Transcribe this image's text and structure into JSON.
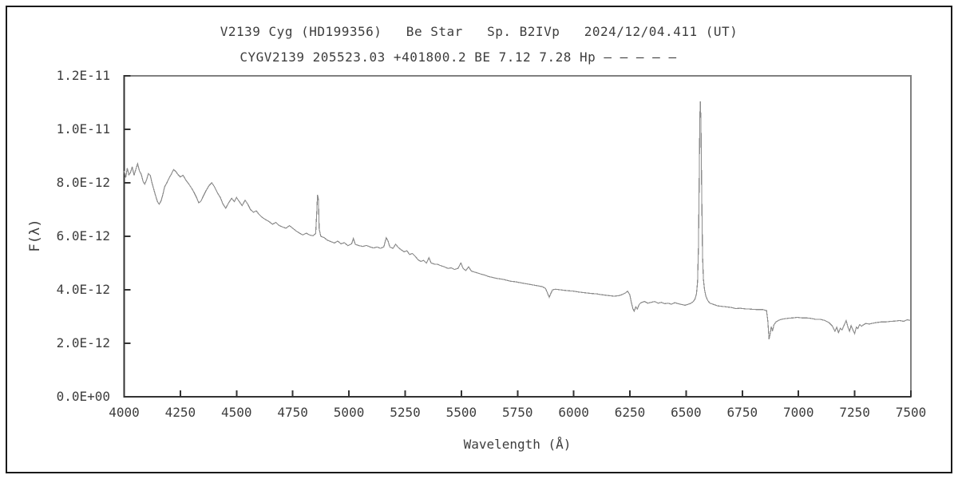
{
  "page": {
    "background": "#ffffff",
    "border_color": "#1a1a1a"
  },
  "chart_data": {
    "type": "line",
    "title": "V2139 Cyg (HD199356)   Be Star   Sp. B2IVp   2024/12/04.411 (UT)",
    "subtitle": "CYGV2139 205523.03 +401800.2 BE 7.12 7.28 Hp – – – – –",
    "xlabel": "Wavelength (Å)",
    "ylabel": "F(λ)",
    "xlim": [
      4000,
      7500
    ],
    "ylim_flux_1e12": [
      0,
      12
    ],
    "flux_unit_factor": 1e-12,
    "x_ticks": [
      4000,
      4250,
      4500,
      4750,
      5000,
      5250,
      5500,
      5750,
      6000,
      6250,
      6500,
      6750,
      7000,
      7250,
      7500
    ],
    "x_tick_labels": [
      "4000",
      "4250",
      "4500",
      "4750",
      "5000",
      "5250",
      "5500",
      "5750",
      "6000",
      "6250",
      "6500",
      "6750",
      "7000",
      "7250",
      "7500"
    ],
    "y_ticks_flux_1e12": [
      0,
      2,
      4,
      6,
      8,
      10,
      12
    ],
    "y_tick_labels": [
      "0.0E+00",
      "2.0E-12",
      "4.0E-12",
      "6.0E-12",
      "8.0E-12",
      "1.0E-11",
      "1.2E-11"
    ],
    "grid": false,
    "legend_position": "none",
    "line_color": "#8c8c8c",
    "frame_color": "#808080",
    "axis_color": "#333333",
    "points_wavelength_flux_1e12": [
      [
        4000,
        8.45
      ],
      [
        4007,
        8.2
      ],
      [
        4014,
        8.55
      ],
      [
        4021,
        8.3
      ],
      [
        4028,
        8.38
      ],
      [
        4036,
        8.6
      ],
      [
        4044,
        8.28
      ],
      [
        4052,
        8.5
      ],
      [
        4060,
        8.72
      ],
      [
        4068,
        8.45
      ],
      [
        4076,
        8.32
      ],
      [
        4084,
        8.05
      ],
      [
        4092,
        7.95
      ],
      [
        4100,
        8.12
      ],
      [
        4108,
        8.35
      ],
      [
        4116,
        8.28
      ],
      [
        4124,
        8.0
      ],
      [
        4132,
        7.75
      ],
      [
        4140,
        7.52
      ],
      [
        4148,
        7.3
      ],
      [
        4156,
        7.2
      ],
      [
        4164,
        7.32
      ],
      [
        4172,
        7.55
      ],
      [
        4180,
        7.85
      ],
      [
        4190,
        8.0
      ],
      [
        4200,
        8.18
      ],
      [
        4210,
        8.32
      ],
      [
        4220,
        8.5
      ],
      [
        4230,
        8.42
      ],
      [
        4240,
        8.3
      ],
      [
        4250,
        8.22
      ],
      [
        4262,
        8.28
      ],
      [
        4275,
        8.1
      ],
      [
        4288,
        7.95
      ],
      [
        4300,
        7.8
      ],
      [
        4312,
        7.62
      ],
      [
        4322,
        7.45
      ],
      [
        4332,
        7.25
      ],
      [
        4342,
        7.32
      ],
      [
        4352,
        7.5
      ],
      [
        4365,
        7.72
      ],
      [
        4378,
        7.9
      ],
      [
        4390,
        8.0
      ],
      [
        4402,
        7.85
      ],
      [
        4415,
        7.62
      ],
      [
        4428,
        7.45
      ],
      [
        4440,
        7.2
      ],
      [
        4452,
        7.05
      ],
      [
        4465,
        7.25
      ],
      [
        4478,
        7.42
      ],
      [
        4490,
        7.3
      ],
      [
        4500,
        7.45
      ],
      [
        4512,
        7.3
      ],
      [
        4525,
        7.15
      ],
      [
        4538,
        7.35
      ],
      [
        4550,
        7.2
      ],
      [
        4562,
        7.0
      ],
      [
        4575,
        6.9
      ],
      [
        4588,
        6.95
      ],
      [
        4600,
        6.82
      ],
      [
        4615,
        6.7
      ],
      [
        4630,
        6.62
      ],
      [
        4645,
        6.55
      ],
      [
        4660,
        6.45
      ],
      [
        4675,
        6.52
      ],
      [
        4690,
        6.4
      ],
      [
        4705,
        6.35
      ],
      [
        4720,
        6.3
      ],
      [
        4735,
        6.4
      ],
      [
        4750,
        6.3
      ],
      [
        4765,
        6.2
      ],
      [
        4780,
        6.12
      ],
      [
        4795,
        6.05
      ],
      [
        4810,
        6.12
      ],
      [
        4825,
        6.05
      ],
      [
        4840,
        6.02
      ],
      [
        4852,
        6.1
      ],
      [
        4857,
        6.9
      ],
      [
        4860,
        7.55
      ],
      [
        4864,
        7.4
      ],
      [
        4868,
        6.25
      ],
      [
        4875,
        6.0
      ],
      [
        4890,
        5.95
      ],
      [
        4905,
        5.85
      ],
      [
        4920,
        5.8
      ],
      [
        4935,
        5.75
      ],
      [
        4950,
        5.82
      ],
      [
        4965,
        5.72
      ],
      [
        4980,
        5.76
      ],
      [
        4995,
        5.65
      ],
      [
        5012,
        5.72
      ],
      [
        5020,
        5.92
      ],
      [
        5028,
        5.7
      ],
      [
        5045,
        5.65
      ],
      [
        5062,
        5.62
      ],
      [
        5078,
        5.66
      ],
      [
        5095,
        5.6
      ],
      [
        5110,
        5.56
      ],
      [
        5125,
        5.6
      ],
      [
        5140,
        5.55
      ],
      [
        5155,
        5.6
      ],
      [
        5166,
        5.95
      ],
      [
        5174,
        5.82
      ],
      [
        5182,
        5.6
      ],
      [
        5196,
        5.55
      ],
      [
        5208,
        5.7
      ],
      [
        5220,
        5.58
      ],
      [
        5232,
        5.5
      ],
      [
        5245,
        5.42
      ],
      [
        5258,
        5.46
      ],
      [
        5270,
        5.32
      ],
      [
        5282,
        5.36
      ],
      [
        5295,
        5.25
      ],
      [
        5308,
        5.12
      ],
      [
        5320,
        5.06
      ],
      [
        5332,
        5.1
      ],
      [
        5345,
        5.0
      ],
      [
        5356,
        5.2
      ],
      [
        5366,
        5.0
      ],
      [
        5380,
        4.96
      ],
      [
        5395,
        4.95
      ],
      [
        5410,
        4.9
      ],
      [
        5425,
        4.86
      ],
      [
        5440,
        4.8
      ],
      [
        5455,
        4.82
      ],
      [
        5470,
        4.76
      ],
      [
        5485,
        4.8
      ],
      [
        5498,
        5.0
      ],
      [
        5508,
        4.8
      ],
      [
        5520,
        4.72
      ],
      [
        5532,
        4.86
      ],
      [
        5545,
        4.7
      ],
      [
        5560,
        4.66
      ],
      [
        5575,
        4.62
      ],
      [
        5590,
        4.58
      ],
      [
        5605,
        4.55
      ],
      [
        5620,
        4.5
      ],
      [
        5640,
        4.46
      ],
      [
        5660,
        4.42
      ],
      [
        5680,
        4.4
      ],
      [
        5700,
        4.36
      ],
      [
        5720,
        4.32
      ],
      [
        5740,
        4.3
      ],
      [
        5760,
        4.27
      ],
      [
        5780,
        4.24
      ],
      [
        5800,
        4.21
      ],
      [
        5820,
        4.18
      ],
      [
        5840,
        4.15
      ],
      [
        5860,
        4.12
      ],
      [
        5875,
        4.05
      ],
      [
        5884,
        3.86
      ],
      [
        5891,
        3.72
      ],
      [
        5898,
        3.86
      ],
      [
        5906,
        4.0
      ],
      [
        5920,
        4.02
      ],
      [
        5940,
        4.0
      ],
      [
        5960,
        3.98
      ],
      [
        5980,
        3.96
      ],
      [
        6000,
        3.95
      ],
      [
        6020,
        3.92
      ],
      [
        6040,
        3.9
      ],
      [
        6060,
        3.88
      ],
      [
        6080,
        3.86
      ],
      [
        6100,
        3.85
      ],
      [
        6120,
        3.82
      ],
      [
        6140,
        3.8
      ],
      [
        6160,
        3.78
      ],
      [
        6180,
        3.76
      ],
      [
        6200,
        3.78
      ],
      [
        6215,
        3.82
      ],
      [
        6230,
        3.88
      ],
      [
        6240,
        3.95
      ],
      [
        6249,
        3.82
      ],
      [
        6256,
        3.55
      ],
      [
        6263,
        3.3
      ],
      [
        6269,
        3.2
      ],
      [
        6276,
        3.36
      ],
      [
        6283,
        3.28
      ],
      [
        6291,
        3.45
      ],
      [
        6300,
        3.52
      ],
      [
        6315,
        3.56
      ],
      [
        6330,
        3.5
      ],
      [
        6345,
        3.53
      ],
      [
        6360,
        3.56
      ],
      [
        6375,
        3.5
      ],
      [
        6390,
        3.53
      ],
      [
        6405,
        3.48
      ],
      [
        6420,
        3.5
      ],
      [
        6435,
        3.46
      ],
      [
        6450,
        3.52
      ],
      [
        6465,
        3.48
      ],
      [
        6480,
        3.45
      ],
      [
        6495,
        3.42
      ],
      [
        6510,
        3.46
      ],
      [
        6522,
        3.5
      ],
      [
        6532,
        3.56
      ],
      [
        6540,
        3.66
      ],
      [
        6546,
        3.85
      ],
      [
        6551,
        4.3
      ],
      [
        6555,
        5.6
      ],
      [
        6558,
        8.0
      ],
      [
        6561,
        10.4
      ],
      [
        6563,
        11.05
      ],
      [
        6566,
        10.3
      ],
      [
        6569,
        7.8
      ],
      [
        6573,
        5.3
      ],
      [
        6577,
        4.4
      ],
      [
        6582,
        4.0
      ],
      [
        6588,
        3.76
      ],
      [
        6596,
        3.6
      ],
      [
        6606,
        3.5
      ],
      [
        6620,
        3.46
      ],
      [
        6640,
        3.4
      ],
      [
        6660,
        3.38
      ],
      [
        6680,
        3.36
      ],
      [
        6700,
        3.34
      ],
      [
        6720,
        3.3
      ],
      [
        6740,
        3.31
      ],
      [
        6760,
        3.29
      ],
      [
        6780,
        3.28
      ],
      [
        6800,
        3.27
      ],
      [
        6820,
        3.26
      ],
      [
        6842,
        3.26
      ],
      [
        6858,
        3.22
      ],
      [
        6864,
        2.8
      ],
      [
        6869,
        2.15
      ],
      [
        6874,
        2.35
      ],
      [
        6879,
        2.62
      ],
      [
        6884,
        2.45
      ],
      [
        6891,
        2.7
      ],
      [
        6900,
        2.8
      ],
      [
        6912,
        2.86
      ],
      [
        6925,
        2.9
      ],
      [
        6940,
        2.92
      ],
      [
        6958,
        2.94
      ],
      [
        6976,
        2.95
      ],
      [
        6995,
        2.97
      ],
      [
        7015,
        2.95
      ],
      [
        7035,
        2.95
      ],
      [
        7055,
        2.93
      ],
      [
        7075,
        2.9
      ],
      [
        7095,
        2.9
      ],
      [
        7115,
        2.86
      ],
      [
        7135,
        2.78
      ],
      [
        7150,
        2.65
      ],
      [
        7162,
        2.45
      ],
      [
        7170,
        2.6
      ],
      [
        7178,
        2.4
      ],
      [
        7186,
        2.56
      ],
      [
        7194,
        2.5
      ],
      [
        7203,
        2.68
      ],
      [
        7212,
        2.85
      ],
      [
        7220,
        2.6
      ],
      [
        7227,
        2.45
      ],
      [
        7234,
        2.66
      ],
      [
        7242,
        2.5
      ],
      [
        7250,
        2.36
      ],
      [
        7257,
        2.6
      ],
      [
        7264,
        2.55
      ],
      [
        7272,
        2.7
      ],
      [
        7281,
        2.64
      ],
      [
        7290,
        2.7
      ],
      [
        7300,
        2.74
      ],
      [
        7315,
        2.72
      ],
      [
        7330,
        2.75
      ],
      [
        7350,
        2.78
      ],
      [
        7370,
        2.8
      ],
      [
        7390,
        2.8
      ],
      [
        7410,
        2.82
      ],
      [
        7430,
        2.83
      ],
      [
        7450,
        2.85
      ],
      [
        7468,
        2.82
      ],
      [
        7484,
        2.88
      ],
      [
        7500,
        2.85
      ]
    ]
  }
}
